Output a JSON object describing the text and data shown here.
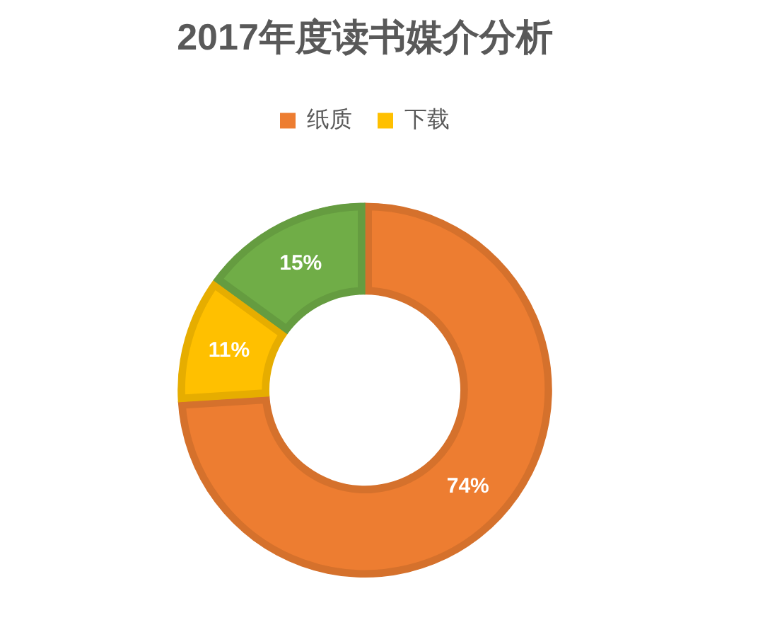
{
  "chart_data": {
    "type": "donut",
    "title": "2017年度读书媒介分析",
    "categories": [
      "纸质",
      "下载",
      null
    ],
    "values": [
      74,
      11,
      15
    ],
    "colors": [
      "#ed7d31",
      "#ffc000",
      "#70ad47"
    ],
    "value_labels": [
      "74%",
      "11%",
      "15%"
    ],
    "legend": "top"
  }
}
